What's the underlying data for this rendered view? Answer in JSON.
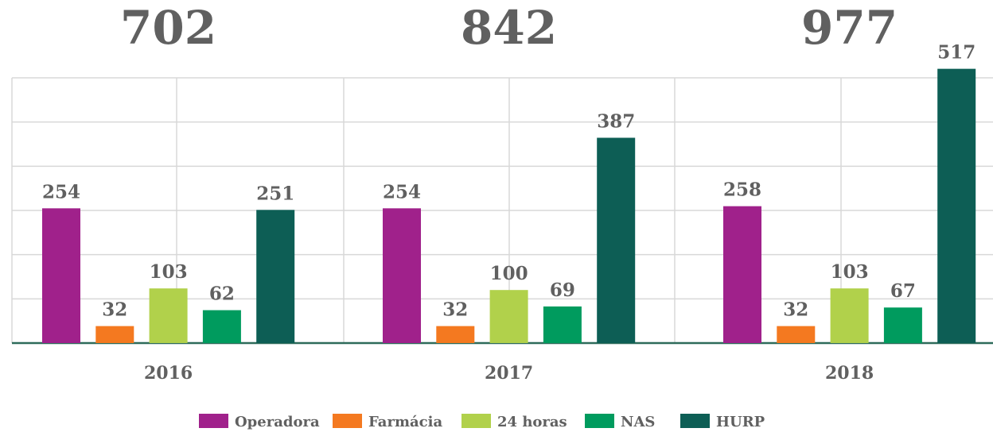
{
  "chart_data": {
    "type": "bar",
    "categories": [
      "2016",
      "2017",
      "2018"
    ],
    "totals": [
      702,
      842,
      977
    ],
    "series": [
      {
        "name": "Operadora",
        "color": "#a0218b",
        "values": [
          254,
          254,
          258
        ]
      },
      {
        "name": "Farmácia",
        "color": "#f47920",
        "values": [
          32,
          32,
          32
        ]
      },
      {
        "name": "24 horas",
        "color": "#b1d14b",
        "values": [
          103,
          100,
          103
        ]
      },
      {
        "name": "NAS",
        "color": "#009b5e",
        "values": [
          62,
          69,
          67
        ]
      },
      {
        "name": "HURP",
        "color": "#0d5e55",
        "values": [
          251,
          387,
          517
        ]
      }
    ],
    "ylim": [
      0,
      500
    ],
    "yticks": [
      0,
      83.3,
      166.7,
      250,
      333.3,
      416.7,
      500
    ],
    "grid": true
  }
}
